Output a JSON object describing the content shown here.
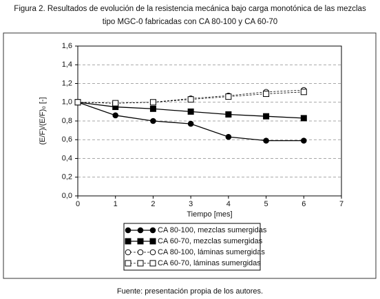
{
  "chart_data": {
    "type": "line",
    "title": "Figura 2. Resultados de evolución de la resistencia mecánica bajo carga monotónica de las mezclas",
    "subtitle": "tipo MGC-0 fabricadas con CA 80-100 y CA 60-70",
    "x_label": "Tiempo [mes]",
    "y_label": "(E/F)/(E/F)₀ [-]",
    "source": "Fuente: presentación propia de los autores.",
    "x": [
      0,
      1,
      2,
      3,
      4,
      5,
      6
    ],
    "xlim": [
      0,
      7
    ],
    "xticks": [
      0,
      1,
      2,
      3,
      4,
      5,
      6,
      7
    ],
    "ylim": [
      0,
      1.6
    ],
    "yticks": [
      {
        "value": 0,
        "label": "0,0"
      },
      {
        "value": 0.2,
        "label": "0,2"
      },
      {
        "value": 0.4,
        "label": "0,4"
      },
      {
        "value": 0.6,
        "label": "0,6"
      },
      {
        "value": 0.8,
        "label": "0,8"
      },
      {
        "value": 1.0,
        "label": "1,0"
      },
      {
        "value": 1.2,
        "label": "1,2"
      },
      {
        "value": 1.4,
        "label": "1,4"
      },
      {
        "value": 1.6,
        "label": "1,6"
      }
    ],
    "grid": true,
    "series": [
      {
        "name": "CA 80-100, mezclas sumergidas",
        "color": "#000000",
        "marker": "circle",
        "filled": true,
        "dashed": false,
        "values": [
          1.0,
          0.86,
          0.8,
          0.77,
          0.63,
          0.59,
          0.59
        ]
      },
      {
        "name": "CA 60-70, mezclas sumergidas",
        "color": "#000000",
        "marker": "square",
        "filled": true,
        "dashed": false,
        "values": [
          1.0,
          0.95,
          0.93,
          0.9,
          0.87,
          0.85,
          0.83
        ]
      },
      {
        "name": "CA 80-100, láminas sumergidas",
        "color": "#000000",
        "marker": "circle",
        "filled": false,
        "dashed": true,
        "values": [
          1.0,
          0.99,
          1.0,
          1.04,
          1.07,
          1.11,
          1.13
        ]
      },
      {
        "name": "CA 60-70, láminas sumergidas",
        "color": "#000000",
        "marker": "square",
        "filled": false,
        "dashed": true,
        "values": [
          1.0,
          0.99,
          1.0,
          1.03,
          1.06,
          1.09,
          1.11
        ]
      }
    ]
  }
}
